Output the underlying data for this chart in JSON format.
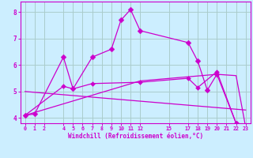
{
  "background_color": "#cceeff",
  "grid_color": "#aacccc",
  "line_color": "#cc00cc",
  "xlim": [
    -0.5,
    23.5
  ],
  "ylim": [
    3.8,
    8.4
  ],
  "yticks": [
    4,
    5,
    6,
    7,
    8
  ],
  "xticks": [
    0,
    1,
    2,
    4,
    5,
    6,
    7,
    8,
    9,
    10,
    11,
    12,
    15,
    17,
    18,
    19,
    20,
    21,
    22,
    23
  ],
  "xlabel": "Windchill (Refroidissement éolien,°C)",
  "series1_x": [
    0,
    1,
    4,
    5,
    7,
    9,
    10,
    11,
    12,
    17,
    18,
    19,
    20,
    22,
    23
  ],
  "series1_y": [
    4.1,
    4.15,
    6.3,
    5.1,
    6.3,
    6.6,
    7.7,
    8.1,
    7.3,
    6.85,
    6.15,
    5.05,
    5.65,
    3.8,
    3.65
  ],
  "series2_x": [
    0,
    4,
    5,
    7,
    12,
    17,
    18,
    20,
    22,
    23
  ],
  "series2_y": [
    4.1,
    5.2,
    5.1,
    5.3,
    5.35,
    5.5,
    5.15,
    5.75,
    3.8,
    3.65
  ],
  "series3_x": [
    0,
    23
  ],
  "series3_y": [
    5.0,
    4.3
  ],
  "series4_x": [
    0,
    12,
    20,
    22,
    23
  ],
  "series4_y": [
    4.1,
    5.4,
    5.65,
    5.6,
    3.65
  ]
}
